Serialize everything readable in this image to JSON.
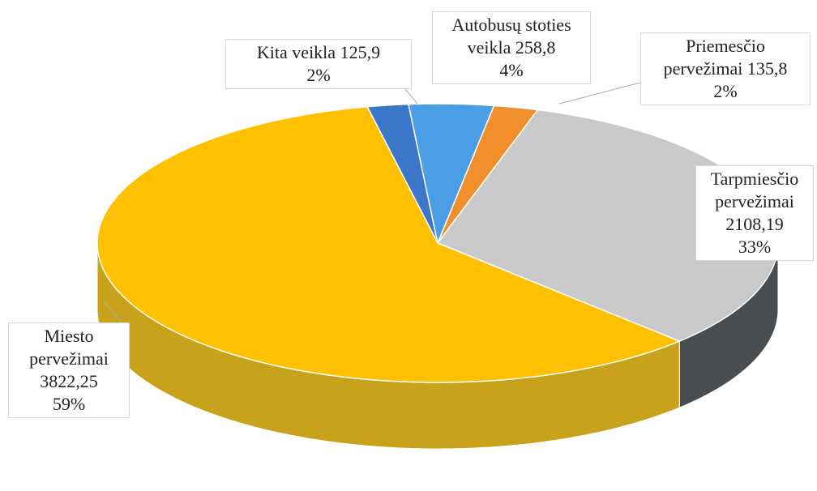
{
  "chart_data": {
    "type": "pie3d",
    "categories": [
      "Kita veikla",
      "Autobusų stoties veikla",
      "Priemesčio pervežimai",
      "Tarpmiesčio pervežimai",
      "Miesto pervežimai"
    ],
    "values": [
      125.9,
      258.8,
      135.8,
      2108.19,
      3822.25
    ],
    "value_labels": [
      "125,9",
      "258,8",
      "135,8",
      "2108,19",
      "3822,25"
    ],
    "percentages": [
      2,
      4,
      2,
      33,
      59
    ],
    "percentage_labels": [
      "2%",
      "4%",
      "2%",
      "33%",
      "59%"
    ],
    "colors": [
      "#3b76c8",
      "#4b9de6",
      "#f08f2c",
      "#c9c9c9",
      "#ffc000"
    ],
    "side_colors": [
      "#2c5a99",
      "#3a7bb4",
      "#b86c1f",
      "#4a4d4f",
      "#c9a21c"
    ]
  }
}
